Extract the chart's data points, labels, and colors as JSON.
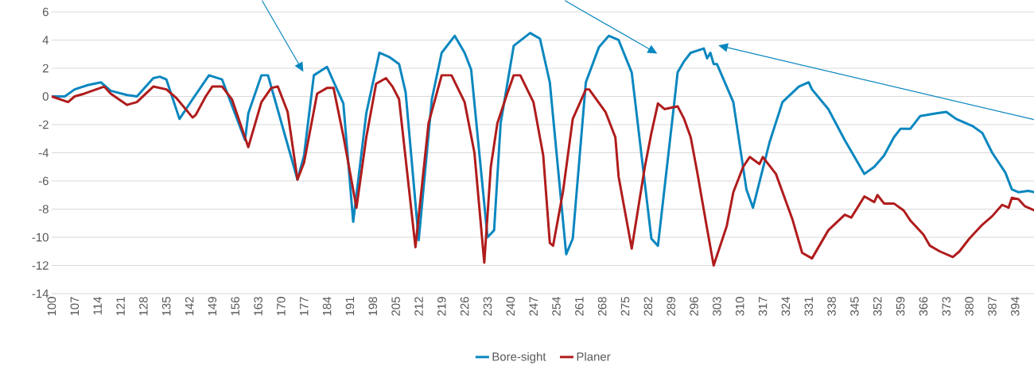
{
  "chart_data": {
    "type": "line",
    "xlim": [
      100,
      400
    ],
    "ylim": [
      -14,
      6
    ],
    "xticks": [
      100,
      107,
      114,
      121,
      128,
      135,
      142,
      149,
      156,
      163,
      170,
      177,
      184,
      191,
      198,
      205,
      212,
      219,
      226,
      233,
      240,
      247,
      254,
      261,
      268,
      275,
      282,
      289,
      296,
      303,
      310,
      317,
      324,
      331,
      338,
      345,
      352,
      359,
      366,
      373,
      380,
      387,
      394
    ],
    "yticks": [
      -14,
      -12,
      -10,
      -8,
      -6,
      -4,
      -2,
      0,
      2,
      4,
      6
    ],
    "grid": "y",
    "legend": "bottom",
    "series": [
      {
        "name": "Bore-sight",
        "color": "#0a87bf",
        "x": [
          100,
          104,
          107,
          111,
          115,
          118,
          123,
          126,
          131,
          133,
          135,
          139,
          143,
          148,
          152,
          159,
          160,
          164,
          166,
          175,
          177,
          180,
          184,
          189,
          192,
          196,
          200,
          203,
          206,
          208,
          212,
          216,
          219,
          223,
          226,
          228,
          233,
          235,
          237,
          241,
          246,
          249,
          252,
          257,
          259,
          263,
          267,
          270,
          273,
          277,
          283,
          285,
          290,
          291,
          293,
          295,
          299,
          300,
          301,
          302,
          303,
          308,
          312,
          314,
          319,
          323,
          328,
          331,
          332,
          337,
          342,
          348,
          351,
          354,
          357,
          359,
          362,
          365,
          370,
          373,
          376,
          381,
          384,
          387,
          391,
          393,
          395,
          398,
          400
        ],
        "values": [
          0,
          0,
          0.5,
          0.8,
          1.0,
          0.4,
          0.1,
          0,
          1.3,
          1.4,
          1.2,
          -1.6,
          -0.2,
          1.5,
          1.2,
          -3.1,
          -1.2,
          1.5,
          1.5,
          -5.9,
          -4.2,
          1.5,
          2.1,
          -0.5,
          -8.9,
          -1.2,
          3.1,
          2.8,
          2.3,
          0.3,
          -10.2,
          -0.2,
          3.1,
          4.3,
          3.1,
          1.9,
          -10.0,
          -9.5,
          -1.9,
          3.6,
          4.5,
          4.1,
          1.0,
          -11.2,
          -10.1,
          1.0,
          3.5,
          4.3,
          4.0,
          1.7,
          -10.1,
          -10.6,
          -0.4,
          1.7,
          2.5,
          3.1,
          3.4,
          2.7,
          3.1,
          2.3,
          2.3,
          -0.4,
          -6.6,
          -7.9,
          -3.3,
          -0.4,
          0.7,
          1.0,
          0.5,
          -0.9,
          -3.1,
          -5.5,
          -5.0,
          -4.2,
          -2.9,
          -2.3,
          -2.3,
          -1.4,
          -1.2,
          -1.1,
          -1.6,
          -2.1,
          -2.6,
          -4.0,
          -5.4,
          -6.6,
          -6.8,
          -6.7,
          -6.8
        ]
      },
      {
        "name": "Planer",
        "color": "#b01c1c",
        "x": [
          100,
          105,
          107,
          110,
          116,
          118,
          123,
          126,
          131,
          135,
          138,
          143,
          144,
          147,
          149,
          152,
          155,
          160,
          161,
          164,
          167,
          169,
          172,
          175,
          177,
          181,
          184,
          186,
          189,
          193,
          196,
          199,
          202,
          204,
          206,
          211,
          215,
          217,
          219,
          222,
          226,
          229,
          232,
          234,
          236,
          239,
          241,
          243,
          247,
          250,
          252,
          253,
          256,
          259,
          263,
          264,
          269,
          272,
          273,
          277,
          281,
          283,
          285,
          287,
          291,
          293,
          295,
          297,
          300,
          302,
          306,
          308,
          311,
          313,
          316,
          317,
          321,
          326,
          329,
          332,
          337,
          342,
          344,
          348,
          351,
          352,
          354,
          357,
          360,
          362,
          366,
          368,
          371,
          375,
          377,
          380,
          384,
          387,
          390,
          392,
          393,
          395,
          397,
          400
        ],
        "values": [
          0,
          -0.4,
          0,
          0.2,
          0.7,
          0.2,
          -0.6,
          -0.4,
          0.7,
          0.5,
          -0.1,
          -1.5,
          -1.3,
          0,
          0.7,
          0.7,
          -0.2,
          -3.6,
          -2.8,
          -0.4,
          0.6,
          0.7,
          -1.1,
          -5.9,
          -4.7,
          0.2,
          0.6,
          0.6,
          -2.8,
          -7.9,
          -2.9,
          0.9,
          1.3,
          0.7,
          -0.2,
          -10.7,
          -1.9,
          -0.2,
          1.5,
          1.5,
          -0.4,
          -4.0,
          -11.8,
          -5.0,
          -1.9,
          0.2,
          1.5,
          1.5,
          -0.4,
          -4.2,
          -10.4,
          -10.6,
          -6.8,
          -1.6,
          0.5,
          0.5,
          -1.1,
          -2.9,
          -5.7,
          -10.8,
          -5.0,
          -2.6,
          -0.5,
          -0.9,
          -0.7,
          -1.6,
          -2.9,
          -5.4,
          -9.4,
          -12.0,
          -9.2,
          -6.8,
          -5.0,
          -4.3,
          -4.8,
          -4.3,
          -5.5,
          -8.7,
          -11.1,
          -11.5,
          -9.5,
          -8.4,
          -8.6,
          -7.1,
          -7.5,
          -7.0,
          -7.6,
          -7.6,
          -8.1,
          -8.8,
          -9.8,
          -10.6,
          -11.0,
          -11.4,
          -11.0,
          -10.1,
          -9.1,
          -8.5,
          -7.7,
          -7.9,
          -7.2,
          -7.3,
          -7.8,
          -8.1
        ]
      }
    ]
  }
}
